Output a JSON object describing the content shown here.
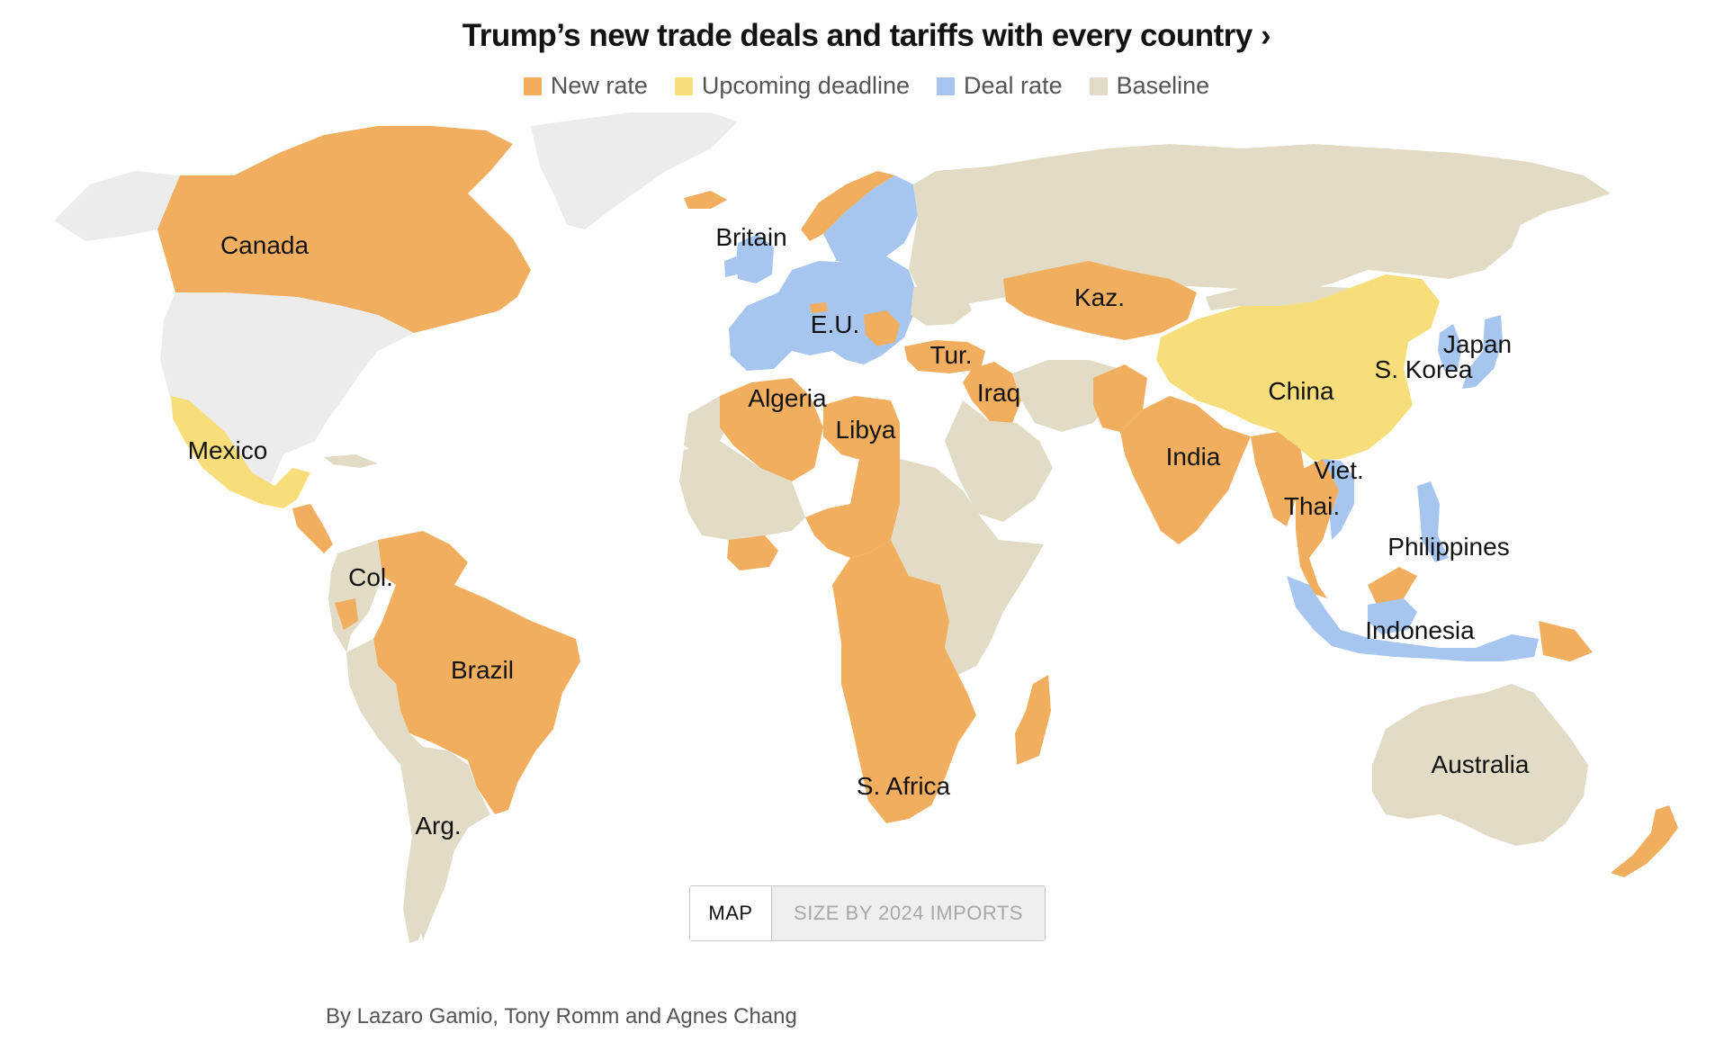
{
  "title": "Trump’s new trade deals and tariffs with every country ›",
  "legend": [
    {
      "label": "New rate",
      "color": "#f0ae5e"
    },
    {
      "label": "Upcoming deadline",
      "color": "#f7de7a"
    },
    {
      "label": "Deal rate",
      "color": "#a7c6ef"
    },
    {
      "label": "Baseline",
      "color": "#e2dcc6"
    }
  ],
  "map_labels": {
    "canada": "Canada",
    "britain": "Britain",
    "eu": "E.U.",
    "kaz": "Kaz.",
    "tur": "Tur.",
    "japan": "Japan",
    "skorea": "S. Korea",
    "algeria": "Algeria",
    "iraq": "Iraq",
    "china": "China",
    "libya": "Libya",
    "mexico": "Mexico",
    "india": "India",
    "viet": "Viet.",
    "thai": "Thai.",
    "philippines": "Philippines",
    "col": "Col.",
    "indonesia": "Indonesia",
    "brazil": "Brazil",
    "australia": "Australia",
    "safrica": "S. Africa",
    "arg": "Arg."
  },
  "toggle": {
    "map": "MAP",
    "size": "SIZE BY 2024 IMPORTS"
  },
  "byline": "By Lazaro Gamio, Tony Romm and Agnes Chang"
}
